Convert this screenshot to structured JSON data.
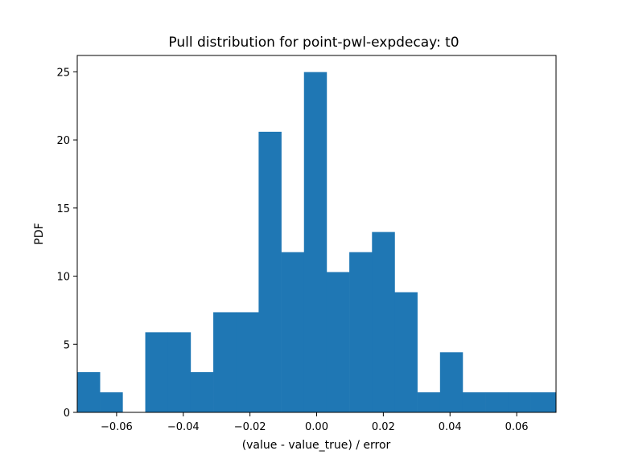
{
  "chart_data": {
    "type": "bar",
    "title": "Pull distribution for point-pwl-expdecay: t0",
    "xlabel": "(value - value_true) / error",
    "ylabel": "PDF",
    "xlim": [
      -0.0718,
      0.0718
    ],
    "ylim": [
      0,
      26.2
    ],
    "bin_edges": [
      -0.0718,
      -0.065,
      -0.0582,
      -0.0514,
      -0.0446,
      -0.0378,
      -0.031,
      -0.0242,
      -0.0174,
      -0.0106,
      -0.0038,
      0.003,
      0.0098,
      0.0166,
      0.0234,
      0.0302,
      0.037,
      0.0438,
      0.0506,
      0.0574,
      0.0642,
      0.0718
    ],
    "values": [
      2.95,
      1.47,
      0,
      5.88,
      5.88,
      2.95,
      7.35,
      7.35,
      20.6,
      11.76,
      24.98,
      10.3,
      11.76,
      13.24,
      8.82,
      1.47,
      4.41,
      1.47,
      1.47,
      1.47,
      1.47
    ],
    "bar_color": "#1f77b4",
    "xticks": [
      -0.06,
      -0.04,
      -0.02,
      0.0,
      0.02,
      0.04,
      0.06
    ],
    "xtick_labels": [
      "−0.06",
      "−0.04",
      "−0.02",
      "0.00",
      "0.02",
      "0.04",
      "0.06"
    ],
    "yticks": [
      0,
      5,
      10,
      15,
      20,
      25
    ],
    "ytick_labels": [
      "0",
      "5",
      "10",
      "15",
      "20",
      "25"
    ],
    "grid": false,
    "legend": "none"
  }
}
